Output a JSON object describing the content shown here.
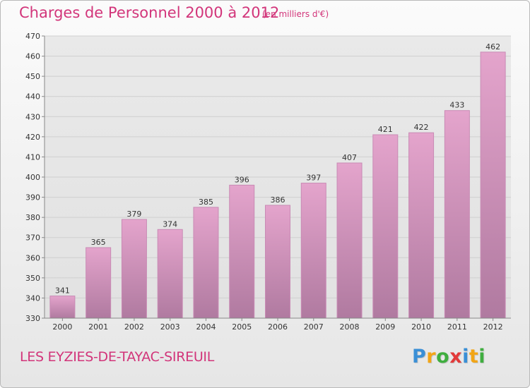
{
  "title": "Charges de Personnel 2000 à 2012",
  "subtitle": "(en milliers d'€)",
  "commune": "LES EYZIES-DE-TAYAC-SIREUIL",
  "logo": {
    "text": "Proxiti",
    "letters": [
      {
        "char": "P",
        "color": "#3a8fd6"
      },
      {
        "char": "r",
        "color": "#f2a516"
      },
      {
        "char": "o",
        "color": "#3fae3f"
      },
      {
        "char": "x",
        "color": "#e23a3a"
      },
      {
        "char": "i",
        "color": "#3a8fd6"
      },
      {
        "char": "t",
        "color": "#f2a516"
      },
      {
        "char": "i",
        "color": "#3fae3f"
      }
    ]
  },
  "colors": {
    "accent": "#d2357a",
    "bar_top": "#e4a4cc",
    "bar_bottom": "#b07aa0",
    "bar_edge": "#c98bb5",
    "grid": "#cfcfcf",
    "plot_bg": "#e6e6e6"
  },
  "chart_data": {
    "type": "bar",
    "title": "Charges de Personnel 2000 à 2012",
    "subtitle": "(en milliers d'€)",
    "categories": [
      "2000",
      "2001",
      "2002",
      "2003",
      "2004",
      "2005",
      "2006",
      "2007",
      "2008",
      "2009",
      "2010",
      "2011",
      "2012"
    ],
    "values": [
      341,
      365,
      379,
      374,
      385,
      396,
      386,
      397,
      407,
      421,
      422,
      433,
      462
    ],
    "ylim": [
      330,
      470
    ],
    "yticks": [
      330,
      340,
      350,
      360,
      370,
      380,
      390,
      400,
      410,
      420,
      430,
      440,
      450,
      460,
      470
    ],
    "grid": true,
    "show_value_labels": true
  }
}
